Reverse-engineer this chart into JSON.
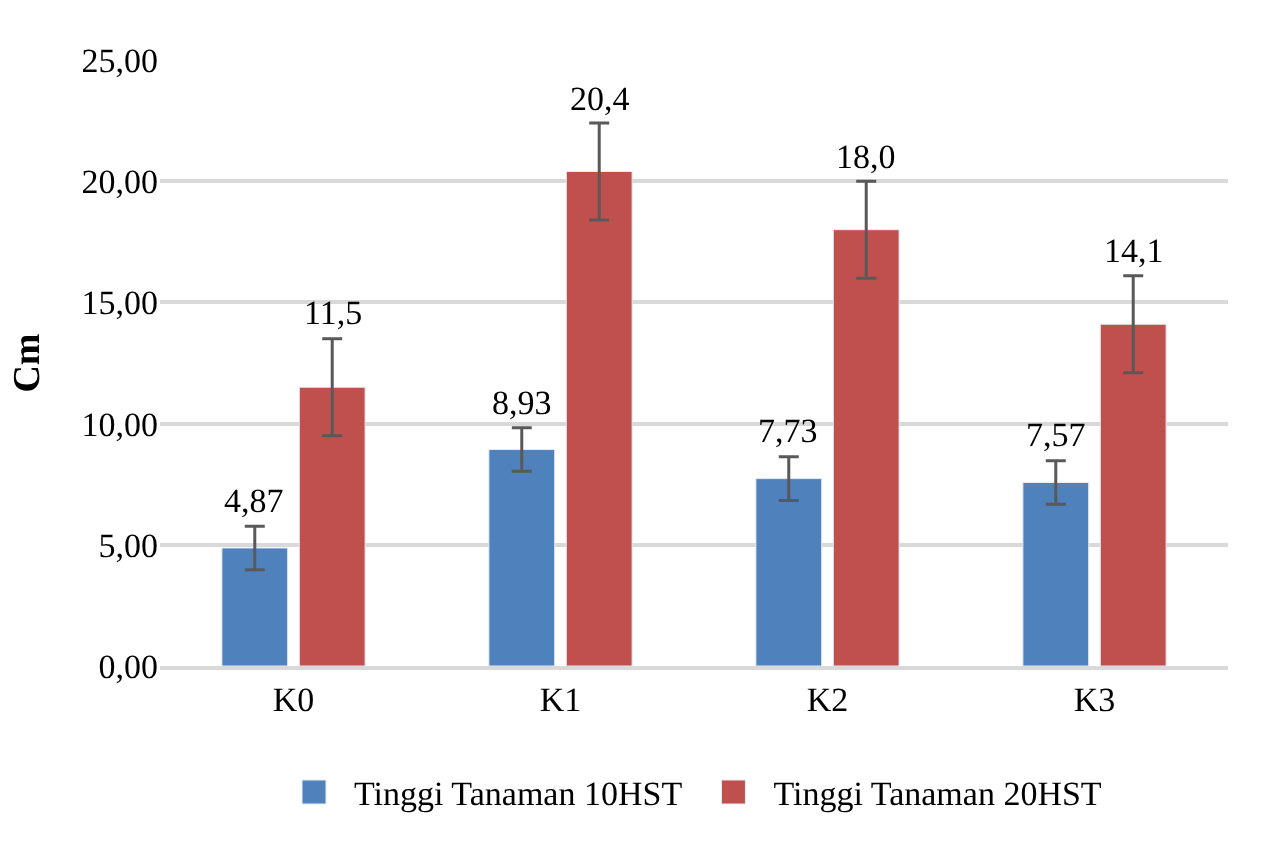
{
  "chart_data": {
    "type": "bar",
    "ylabel": "Cm",
    "categories": [
      "K0",
      "K1",
      "K2",
      "K3"
    ],
    "series": [
      {
        "name": "Tinggi Tanaman 10HST",
        "color": "#4f81bd",
        "values": [
          4.87,
          8.93,
          7.73,
          7.57
        ],
        "value_labels": [
          "4,87",
          "8,93",
          "7,73",
          "7,57"
        ],
        "errors": [
          0.9,
          0.9,
          0.9,
          0.9
        ]
      },
      {
        "name": "Tinggi Tanaman 20HST",
        "color": "#c0504d",
        "values": [
          11.5,
          20.4,
          18.0,
          14.1
        ],
        "value_labels": [
          "11,5",
          "20,4",
          "18,0",
          "14,1"
        ],
        "errors": [
          2.0,
          2.0,
          2.0,
          2.0
        ]
      }
    ],
    "ylim": [
      0,
      25
    ],
    "yticks": [
      {
        "value": 0,
        "label": "0,00"
      },
      {
        "value": 5,
        "label": "5,00"
      },
      {
        "value": 10,
        "label": "10,00"
      },
      {
        "value": 15,
        "label": "15,00"
      },
      {
        "value": 20,
        "label": "20,00"
      },
      {
        "value": 25,
        "label": "25,00"
      }
    ],
    "grid": "y",
    "legend": "bottom"
  }
}
